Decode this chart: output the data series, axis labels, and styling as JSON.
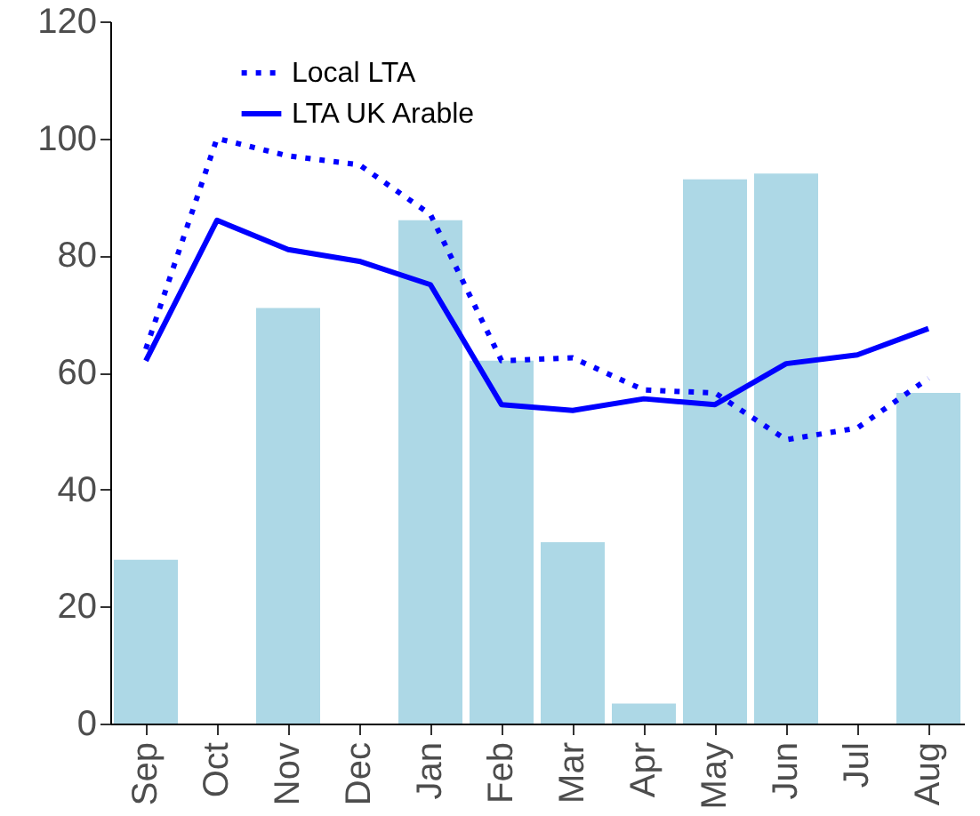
{
  "chart_data": {
    "type": "bar",
    "categories": [
      "Sep",
      "Oct",
      "Nov",
      "Dec",
      "Jan",
      "Feb",
      "Mar",
      "Apr",
      "May",
      "Jun",
      "Jul",
      "Aug"
    ],
    "series": [
      {
        "color": "#add8e6",
        "values": [
          28,
          null,
          71,
          null,
          86,
          62,
          31,
          3.4,
          93,
          94,
          null,
          56.5
        ]
      },
      {
        "type": "line",
        "name": "Local LTA",
        "color": "#0000ff",
        "line_style": "dotted",
        "values": [
          64,
          100,
          97,
          95.5,
          87,
          62,
          62.5,
          57,
          56.5,
          48.5,
          50.5,
          59
        ]
      },
      {
        "type": "line",
        "name": "LTA UK Arable",
        "color": "#0000ff",
        "line_style": "solid",
        "values": [
          62,
          86,
          81,
          79,
          75,
          54.5,
          53.5,
          55.5,
          54.5,
          61.5,
          63,
          67.5
        ]
      }
    ],
    "ylim": [
      0,
      120
    ],
    "yticks": [
      0,
      20,
      40,
      60,
      80,
      100,
      120
    ],
    "legend": "top left",
    "grid": false
  }
}
